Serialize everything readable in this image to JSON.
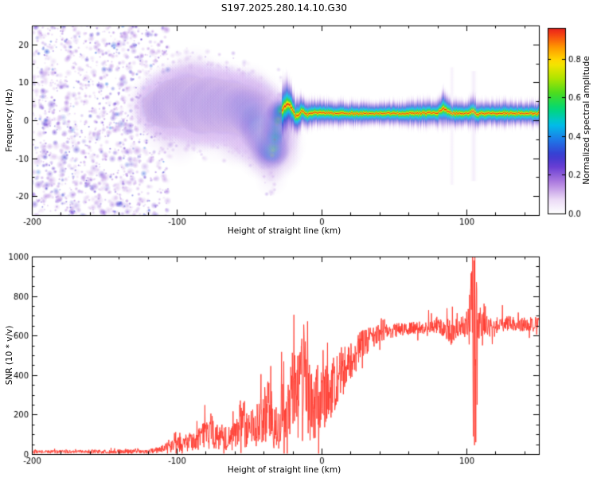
{
  "title": "S197.2025.280.14.10.G30",
  "palette": {
    "trace_color": "#ff3b30",
    "frame_color": "#000000",
    "background": "#ffffff",
    "colormap_stops": [
      [
        0,
        "#ffffff"
      ],
      [
        0.07,
        "#ecdcf6"
      ],
      [
        0.16,
        "#b07ee0"
      ],
      [
        0.24,
        "#6a3fd4"
      ],
      [
        0.3,
        "#3a3ad0"
      ],
      [
        0.38,
        "#1e78e8"
      ],
      [
        0.46,
        "#00c0e8"
      ],
      [
        0.54,
        "#00d878"
      ],
      [
        0.62,
        "#48dc20"
      ],
      [
        0.7,
        "#b0e400"
      ],
      [
        0.78,
        "#ffe400"
      ],
      [
        0.86,
        "#ff9800"
      ],
      [
        0.93,
        "#f43c14"
      ],
      [
        1,
        "#cc0028"
      ]
    ]
  },
  "chart_data": [
    {
      "type": "heatmap",
      "panel": "spectrogram",
      "title": "S197.2025.280.14.10.G30",
      "xlabel": "Height of straight line (km)",
      "ylabel": "Frequency (Hz)",
      "xlim": [
        -200,
        150
      ],
      "ylim": [
        -25,
        25
      ],
      "xticks": [
        -200,
        -100,
        0,
        100
      ],
      "yticks": [
        -20,
        -10,
        0,
        10,
        20
      ],
      "colorbar": {
        "label": "Normalized spectral amplitude",
        "ticks": [
          0,
          0.2,
          0.4,
          0.6,
          0.8
        ],
        "vmax_display": 0.96
      },
      "noise_field": {
        "x_range": [
          -200,
          -106
        ],
        "f_range": [
          -25.5,
          25.5
        ],
        "blob_count": 1500,
        "amplitude_range": [
          0.03,
          0.32
        ]
      },
      "side_noise": {
        "x_range": [
          -106,
          -28
        ],
        "blob_count": 260,
        "offset_hz": [
          4,
          14
        ]
      },
      "echo_band": {
        "x_range": [
          -113,
          150
        ],
        "clean_from": -28,
        "centers_hz": [
          [
            -113,
            4
          ],
          [
            -107,
            3
          ],
          [
            -102,
            5
          ],
          [
            -97,
            4
          ],
          [
            -92,
            6
          ],
          [
            -87,
            4.5
          ],
          [
            -82,
            3
          ],
          [
            -77,
            5
          ],
          [
            -72,
            4
          ],
          [
            -67,
            3
          ],
          [
            -62,
            4
          ],
          [
            -57,
            2.5
          ],
          [
            -52,
            3
          ],
          [
            -48,
            1.5
          ],
          [
            -45,
            0.5
          ],
          [
            -42,
            -1.5
          ],
          [
            -40,
            -3.5
          ],
          [
            -38,
            -5.5
          ],
          [
            -36,
            -7.5
          ],
          [
            -34,
            -9
          ],
          [
            -32,
            -4
          ],
          [
            -30,
            0.5
          ],
          [
            -28,
            2.5
          ],
          [
            -26,
            3.5
          ],
          [
            -24,
            4.5
          ],
          [
            -22,
            4
          ],
          [
            -20,
            2.5
          ],
          [
            -18,
            1
          ],
          [
            -16,
            1.5
          ],
          [
            -14,
            2.5
          ],
          [
            -12,
            2
          ],
          [
            -10,
            1.5
          ],
          [
            -5,
            2
          ],
          [
            0,
            2
          ],
          [
            10,
            1.8
          ],
          [
            20,
            1.8
          ],
          [
            40,
            1.8
          ],
          [
            60,
            1.8
          ],
          [
            80,
            2
          ],
          [
            84,
            3.2
          ],
          [
            87,
            2.4
          ],
          [
            90,
            1.8
          ],
          [
            100,
            1.8
          ],
          [
            104,
            2.4
          ],
          [
            107,
            1.5
          ],
          [
            110,
            1.8
          ],
          [
            130,
            1.8
          ],
          [
            150,
            1.8
          ]
        ],
        "widths_hz": [
          [
            -113,
            4
          ],
          [
            -100,
            5
          ],
          [
            -90,
            5.2
          ],
          [
            -80,
            5.4
          ],
          [
            -70,
            5
          ],
          [
            -60,
            5
          ],
          [
            -50,
            5
          ],
          [
            -40,
            4.6
          ],
          [
            -34,
            4
          ],
          [
            -30,
            3.4
          ],
          [
            -26,
            3
          ],
          [
            -22,
            2.7
          ],
          [
            -18,
            2.2
          ],
          [
            -14,
            1.9
          ],
          [
            -10,
            1.6
          ],
          [
            0,
            1.5
          ],
          [
            40,
            1.3
          ],
          [
            80,
            1.6
          ],
          [
            84,
            2.1
          ],
          [
            88,
            1.6
          ],
          [
            100,
            1.4
          ],
          [
            104,
            2.1
          ],
          [
            108,
            1.5
          ],
          [
            150,
            1.4
          ]
        ],
        "intensity": [
          [
            -113,
            0.5
          ],
          [
            -105,
            0.65
          ],
          [
            -95,
            0.72
          ],
          [
            -85,
            0.68
          ],
          [
            -75,
            0.72
          ],
          [
            -65,
            0.68
          ],
          [
            -55,
            0.7
          ],
          [
            -45,
            0.72
          ],
          [
            -38,
            0.75
          ],
          [
            -32,
            0.8
          ],
          [
            -28,
            0.85
          ],
          [
            -24,
            0.9
          ],
          [
            -20,
            0.95
          ],
          [
            -15,
            0.97
          ],
          [
            -10,
            1
          ],
          [
            150,
            1
          ]
        ]
      },
      "streaks": [
        {
          "x": -35,
          "half_width_km": 3.0,
          "f_lo": -16,
          "f_hi": 8,
          "alpha": 0.1
        },
        {
          "x": 90,
          "half_width_km": 1.6,
          "f_lo": -17,
          "f_hi": 14,
          "alpha": 0.16
        },
        {
          "x": 105,
          "half_width_km": 2.2,
          "f_lo": -16,
          "f_hi": 13,
          "alpha": 0.2
        }
      ]
    },
    {
      "type": "line",
      "panel": "snr",
      "xlabel": "Height of straight line (km)",
      "ylabel": "SNR (10 * v/v)",
      "xlim": [
        -200,
        150
      ],
      "ylim": [
        0,
        1000
      ],
      "xticks": [
        -200,
        -100,
        0,
        100
      ],
      "yticks": [
        0,
        200,
        400,
        600,
        800,
        1000
      ],
      "color": "#ff3b30",
      "envelope_points": [
        [
          -200,
          12,
          8
        ],
        [
          -190,
          12,
          8
        ],
        [
          -180,
          12,
          9
        ],
        [
          -170,
          12,
          8
        ],
        [
          -160,
          13,
          9
        ],
        [
          -150,
          12,
          9
        ],
        [
          -140,
          13,
          10
        ],
        [
          -130,
          14,
          10
        ],
        [
          -120,
          16,
          12
        ],
        [
          -115,
          18,
          14
        ],
        [
          -110,
          26,
          20
        ],
        [
          -105,
          36,
          28
        ],
        [
          -100,
          46,
          36
        ],
        [
          -95,
          55,
          45
        ],
        [
          -90,
          62,
          50
        ],
        [
          -85,
          75,
          60
        ],
        [
          -80,
          95,
          75
        ],
        [
          -75,
          115,
          88
        ],
        [
          -70,
          88,
          66
        ],
        [
          -65,
          76,
          60
        ],
        [
          -60,
          92,
          72
        ],
        [
          -55,
          132,
          95
        ],
        [
          -50,
          118,
          88
        ],
        [
          -45,
          152,
          112
        ],
        [
          -40,
          192,
          150
        ],
        [
          -36,
          232,
          180
        ],
        [
          -33,
          122,
          92
        ],
        [
          -30,
          92,
          70
        ],
        [
          -28,
          200,
          160
        ],
        [
          -26,
          280,
          220
        ],
        [
          -24,
          185,
          140
        ],
        [
          -22,
          262,
          205
        ],
        [
          -20,
          225,
          172
        ],
        [
          -18,
          305,
          232
        ],
        [
          -16,
          262,
          200
        ],
        [
          -14,
          345,
          262
        ],
        [
          -12,
          385,
          282
        ],
        [
          -10,
          302,
          232
        ],
        [
          -8,
          262,
          192
        ],
        [
          -6,
          232,
          172
        ],
        [
          -4,
          262,
          182
        ],
        [
          -2,
          302,
          192
        ],
        [
          0,
          282,
          172
        ],
        [
          2,
          302,
          162
        ],
        [
          4,
          332,
          162
        ],
        [
          6,
          312,
          152
        ],
        [
          8,
          342,
          152
        ],
        [
          10,
          362,
          152
        ],
        [
          12,
          382,
          142
        ],
        [
          15,
          422,
          132
        ],
        [
          18,
          452,
          122
        ],
        [
          20,
          472,
          112
        ],
        [
          25,
          522,
          92
        ],
        [
          30,
          562,
          72
        ],
        [
          35,
          592,
          56
        ],
        [
          40,
          612,
          46
        ],
        [
          45,
          622,
          40
        ],
        [
          50,
          626,
          36
        ],
        [
          55,
          631,
          35
        ],
        [
          60,
          636,
          34
        ],
        [
          65,
          639,
          32
        ],
        [
          70,
          641,
          32
        ],
        [
          75,
          646,
          34
        ],
        [
          80,
          649,
          40
        ],
        [
          85,
          641,
          54
        ],
        [
          90,
          616,
          70
        ],
        [
          93,
          631,
          54
        ],
        [
          96,
          646,
          44
        ],
        [
          100,
          656,
          70
        ],
        [
          102,
          700,
          150
        ],
        [
          104,
          640,
          330
        ],
        [
          106,
          690,
          280
        ],
        [
          108,
          668,
          120
        ],
        [
          110,
          661,
          70
        ],
        [
          115,
          651,
          46
        ],
        [
          120,
          656,
          40
        ],
        [
          125,
          659,
          38
        ],
        [
          130,
          661,
          38
        ],
        [
          135,
          656,
          36
        ],
        [
          140,
          659,
          36
        ],
        [
          145,
          656,
          36
        ],
        [
          150,
          661,
          36
        ]
      ],
      "spikes": [
        [
          -12.3,
          655
        ],
        [
          104.3,
          1000
        ],
        [
          104.8,
          90
        ],
        [
          105.1,
          980
        ],
        [
          105.5,
          45
        ],
        [
          105.9,
          1000
        ],
        [
          106.4,
          60
        ],
        [
          106.8,
          870
        ],
        [
          107.3,
          250
        ]
      ]
    }
  ]
}
